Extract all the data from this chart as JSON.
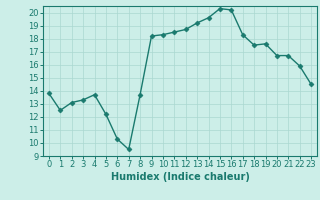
{
  "x": [
    0,
    1,
    2,
    3,
    4,
    5,
    6,
    7,
    8,
    9,
    10,
    11,
    12,
    13,
    14,
    15,
    16,
    17,
    18,
    19,
    20,
    21,
    22,
    23
  ],
  "y": [
    13.8,
    12.5,
    13.1,
    13.3,
    13.7,
    12.2,
    10.3,
    9.5,
    13.7,
    18.2,
    18.3,
    18.5,
    18.7,
    19.2,
    19.6,
    20.3,
    20.2,
    18.3,
    17.5,
    17.6,
    16.7,
    16.7,
    15.9,
    14.5
  ],
  "line_color": "#1a7a6e",
  "marker": "D",
  "markersize": 2.5,
  "linewidth": 1.0,
  "xlim": [
    -0.5,
    23.5
  ],
  "ylim": [
    9,
    20.5
  ],
  "yticks": [
    9,
    10,
    11,
    12,
    13,
    14,
    15,
    16,
    17,
    18,
    19,
    20
  ],
  "xticks": [
    0,
    1,
    2,
    3,
    4,
    5,
    6,
    7,
    8,
    9,
    10,
    11,
    12,
    13,
    14,
    15,
    16,
    17,
    18,
    19,
    20,
    21,
    22,
    23
  ],
  "xlabel": "Humidex (Indice chaleur)",
  "xlabel_fontsize": 7,
  "tick_fontsize": 6,
  "bg_color": "#cceee8",
  "grid_color": "#aad8d0",
  "spine_color": "#1a7a6e"
}
